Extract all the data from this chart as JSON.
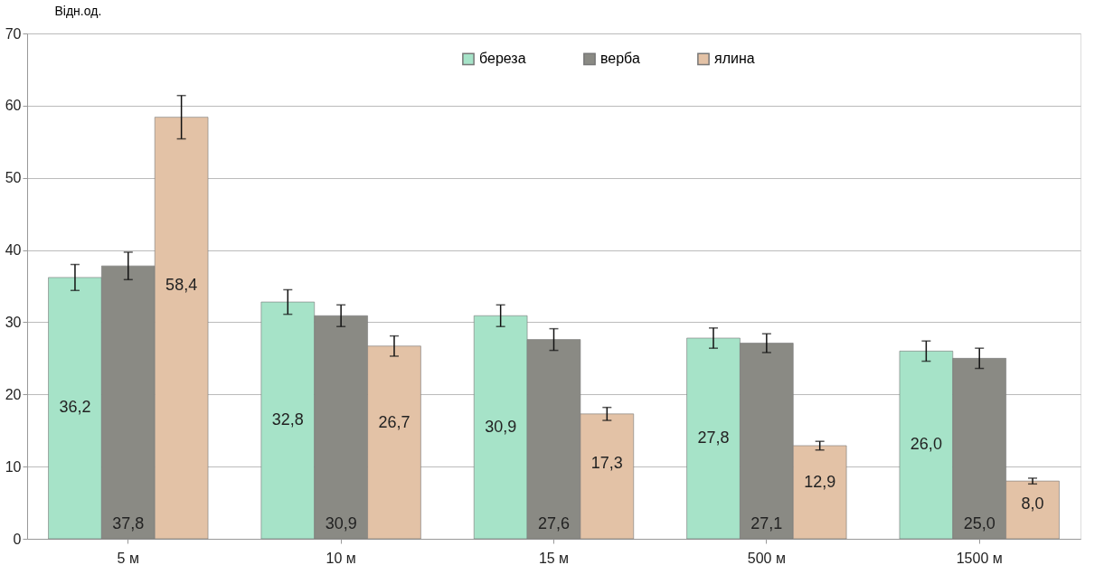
{
  "chart_data": {
    "type": "bar",
    "ylabel": "Відн.од.",
    "categories": [
      "5 м",
      "10 м",
      "15 м",
      "500 м",
      "1500 м"
    ],
    "series": [
      {
        "name": "береза",
        "color": "#a6e3c8",
        "values": [
          36.2,
          32.8,
          30.9,
          27.8,
          26.0
        ],
        "errors": [
          1.8,
          1.7,
          1.5,
          1.4,
          1.4
        ],
        "value_labels": [
          "36,2",
          "32,8",
          "30,9",
          "27,8",
          "26,0"
        ]
      },
      {
        "name": "верба",
        "color": "#8a8a84",
        "values": [
          37.8,
          30.9,
          27.6,
          27.1,
          25.0
        ],
        "errors": [
          1.9,
          1.5,
          1.5,
          1.3,
          1.4
        ],
        "value_labels": [
          "37,8",
          "30,9",
          "27,6",
          "27,1",
          "25,0"
        ]
      },
      {
        "name": "ялина",
        "color": "#e3c2a6",
        "values": [
          58.4,
          26.7,
          17.3,
          12.9,
          8.0
        ],
        "errors": [
          3.0,
          1.4,
          0.9,
          0.6,
          0.4
        ],
        "value_labels": [
          "58,4",
          "26,7",
          "17,3",
          "12,9",
          "8,0"
        ]
      }
    ],
    "ylim": [
      0,
      70
    ],
    "yticks": [
      0,
      10,
      20,
      30,
      40,
      50,
      60,
      70
    ],
    "grid": "y",
    "legend": "top"
  }
}
